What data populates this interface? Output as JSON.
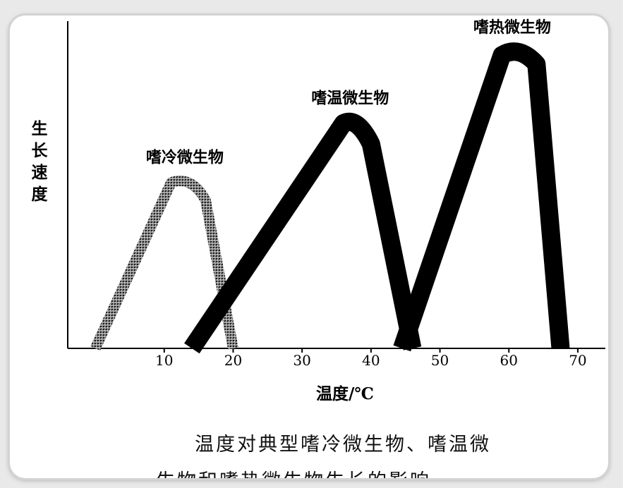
{
  "chart_data": {
    "type": "line",
    "title": "",
    "xlabel": "温度/℃",
    "ylabel": "生长速度",
    "xlim": [
      -4,
      74
    ],
    "ylim": [
      0,
      100
    ],
    "x_ticks": [
      10,
      20,
      30,
      40,
      50,
      60,
      70
    ],
    "grid": false,
    "legend": "none",
    "series": [
      {
        "name": "嗜冷微生物",
        "style": "stippled",
        "color": "#777777",
        "x": [
          0,
          11,
          14,
          16,
          20
        ],
        "y": [
          0,
          56,
          57,
          50,
          0
        ]
      },
      {
        "name": "嗜温微生物",
        "style": "solid",
        "color": "#000000",
        "x": [
          14,
          36,
          38,
          40,
          46
        ],
        "y": [
          0,
          76,
          77,
          69,
          0
        ]
      },
      {
        "name": "嗜热微生物",
        "style": "solid",
        "color": "#000000",
        "x": [
          44.5,
          59,
          61.5,
          64,
          67.5
        ],
        "y": [
          0,
          99,
          101,
          96,
          0
        ]
      }
    ]
  },
  "caption": {
    "line1": "温度对典型嗜冷微生物、嗜温微",
    "line2": "生物和嗜热微生物生长的影响"
  }
}
